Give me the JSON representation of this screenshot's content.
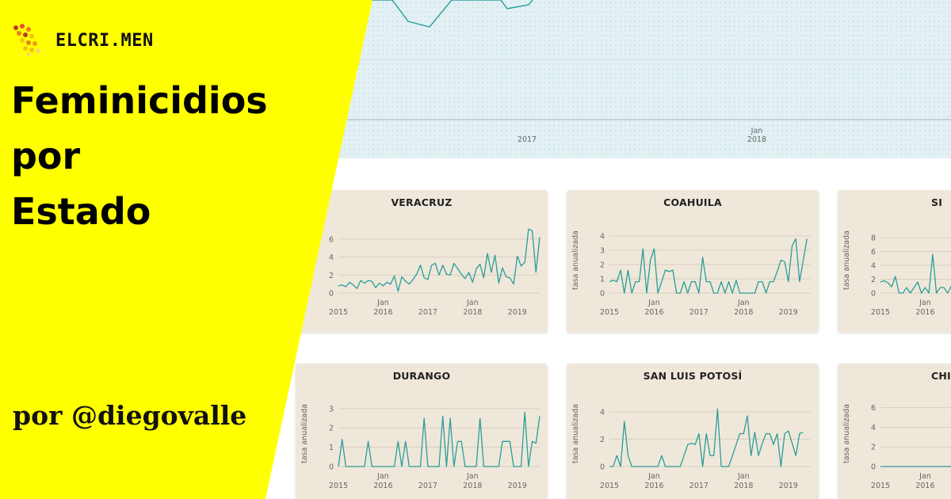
{
  "brand": {
    "name": "ELCRI.MEN",
    "logo_icon": "hexagon-dots-logo-icon",
    "logo_colors": [
      "#c0392b",
      "#e67e22",
      "#f1c40f",
      "#e74c3c"
    ]
  },
  "headline": "Feminicidios\npor\nEstado",
  "byline": "por @diegovalle",
  "colors": {
    "accent_yellow": "#ffff00",
    "line": "#2a9d99",
    "panel_bg": "#efe8da",
    "top_bg": "#e3f1f4"
  },
  "top_chart": {
    "x_ticks": [
      {
        "top": "",
        "bottom": "2017"
      },
      {
        "top": "Jan",
        "bottom": "2018"
      }
    ]
  },
  "chart_data": [
    {
      "type": "line",
      "title": "VERACRUZ",
      "ylabel": "",
      "ylim": [
        0,
        7.3
      ],
      "y_ticks": [
        "0",
        "2",
        "4",
        "6"
      ],
      "x_ticks": [
        {
          "top": "",
          "bottom": "2015"
        },
        {
          "top": "Jan",
          "bottom": "2016"
        },
        {
          "top": "",
          "bottom": "2017"
        },
        {
          "top": "Jan",
          "bottom": "2018"
        },
        {
          "top": "",
          "bottom": "2019"
        }
      ],
      "values": [
        0.8,
        0.9,
        0.7,
        1.2,
        0.9,
        0.5,
        1.4,
        1.1,
        1.4,
        1.3,
        0.6,
        1.1,
        0.8,
        1.2,
        1.0,
        1.9,
        0.2,
        1.8,
        1.3,
        1.0,
        1.5,
        2.1,
        3.1,
        1.7,
        1.5,
        3.1,
        3.3,
        2.0,
        3.1,
        2.1,
        2.0,
        3.3,
        2.7,
        2.1,
        1.6,
        2.3,
        1.2,
        2.7,
        3.2,
        1.7,
        4.4,
        2.3,
        4.2,
        1.1,
        2.8,
        1.8,
        1.7,
        1.0,
        4.1,
        3.0,
        3.4,
        7.1,
        6.9,
        2.3,
        6.2
      ]
    },
    {
      "type": "line",
      "title": "COAHUILA",
      "ylabel": "tasa anualizada",
      "ylim": [
        0,
        4.6
      ],
      "y_ticks": [
        "0",
        "1",
        "2",
        "3",
        "4"
      ],
      "x_ticks": [
        {
          "top": "",
          "bottom": "2015"
        },
        {
          "top": "Jan",
          "bottom": "2016"
        },
        {
          "top": "",
          "bottom": "2017"
        },
        {
          "top": "Jan",
          "bottom": "2018"
        },
        {
          "top": "",
          "bottom": "2019"
        }
      ],
      "values": [
        0.8,
        0.9,
        0.8,
        1.6,
        0.0,
        1.6,
        0.0,
        0.8,
        0.8,
        3.1,
        0.0,
        2.3,
        3.1,
        0.0,
        0.8,
        1.6,
        1.5,
        1.6,
        0.0,
        0.0,
        0.8,
        0.0,
        0.8,
        0.8,
        0.0,
        2.5,
        0.8,
        0.8,
        0.0,
        0.0,
        0.8,
        0.0,
        0.8,
        0.0,
        0.9,
        0.0,
        0.0,
        0.0,
        0.0,
        0.0,
        0.8,
        0.8,
        0.0,
        0.8,
        0.8,
        1.5,
        2.3,
        2.2,
        0.8,
        3.3,
        3.8,
        0.8,
        2.3,
        3.8
      ]
    },
    {
      "type": "line",
      "title": "SI",
      "ylabel": "tasa anualizada",
      "ylim": [
        0,
        9.5
      ],
      "y_ticks": [
        "0",
        "2",
        "4",
        "6",
        "8"
      ],
      "x_ticks": [
        {
          "top": "",
          "bottom": "2015"
        },
        {
          "top": "Jan",
          "bottom": "2016"
        }
      ],
      "values": [
        1.6,
        1.8,
        1.5,
        0.9,
        2.4,
        0.0,
        0.0,
        0.8,
        0.0,
        0.8,
        1.6,
        0.0,
        0.8,
        0.0,
        5.6,
        0.0,
        0.8,
        0.8,
        0.0,
        1.0,
        4.8
      ]
    },
    {
      "type": "line",
      "title": "DURANGO",
      "ylabel": "tasa anualizada",
      "ylim": [
        0,
        3.4
      ],
      "y_ticks": [
        "0",
        "1",
        "2",
        "3"
      ],
      "x_ticks": [
        {
          "top": "",
          "bottom": "2015"
        },
        {
          "top": "Jan",
          "bottom": "2016"
        },
        {
          "top": "",
          "bottom": "2017"
        },
        {
          "top": "Jan",
          "bottom": "2018"
        },
        {
          "top": "",
          "bottom": "2019"
        }
      ],
      "values": [
        0.0,
        1.4,
        0.0,
        0.0,
        0.0,
        0.0,
        0.0,
        0.0,
        1.3,
        0.0,
        0.0,
        0.0,
        0.0,
        0.0,
        0.0,
        0.0,
        1.3,
        0.0,
        1.3,
        0.0,
        0.0,
        0.0,
        0.0,
        2.5,
        0.0,
        0.0,
        0.0,
        0.0,
        2.6,
        0.0,
        2.5,
        0.0,
        1.3,
        1.3,
        0.0,
        0.0,
        0.0,
        0.0,
        2.5,
        0.0,
        0.0,
        0.0,
        0.0,
        0.0,
        1.3,
        1.3,
        1.3,
        0.0,
        0.0,
        0.0,
        2.8,
        0.0,
        1.3,
        1.2,
        2.6
      ]
    },
    {
      "type": "line",
      "title": "SAN LUIS POTOSÍ",
      "ylabel": "tasa anualizada",
      "ylim": [
        0,
        4.8
      ],
      "y_ticks": [
        "0",
        "2",
        "4"
      ],
      "x_ticks": [
        {
          "top": "",
          "bottom": "2015"
        },
        {
          "top": "Jan",
          "bottom": "2016"
        },
        {
          "top": "",
          "bottom": "2017"
        },
        {
          "top": "Jan",
          "bottom": "2018"
        },
        {
          "top": "",
          "bottom": "2019"
        }
      ],
      "values": [
        0.0,
        0.0,
        0.8,
        0.0,
        3.3,
        0.8,
        0.0,
        0.0,
        0.0,
        0.0,
        0.0,
        0.0,
        0.0,
        0.0,
        0.8,
        0.0,
        0.0,
        0.0,
        0.0,
        0.0,
        0.8,
        1.6,
        1.7,
        1.6,
        2.4,
        0.0,
        2.4,
        0.8,
        0.8,
        4.2,
        0.0,
        0.0,
        0.0,
        0.8,
        1.6,
        2.4,
        2.4,
        3.7,
        0.8,
        2.5,
        0.8,
        1.7,
        2.4,
        2.4,
        1.6,
        2.4,
        0.0,
        2.4,
        2.6,
        1.7,
        0.8,
        2.4,
        2.5
      ]
    },
    {
      "type": "line",
      "title": "CHI",
      "ylabel": "tasa anualizada",
      "ylim": [
        0,
        6.7
      ],
      "y_ticks": [
        "0",
        "2",
        "4",
        "6"
      ],
      "x_ticks": [
        {
          "top": "",
          "bottom": "2015"
        },
        {
          "top": "Jan",
          "bottom": "2016"
        }
      ],
      "values": [
        0,
        0,
        0,
        0,
        0,
        0,
        0,
        0,
        0,
        0,
        0,
        0,
        0,
        0,
        0,
        0,
        0,
        0,
        0,
        0,
        0
      ]
    }
  ]
}
